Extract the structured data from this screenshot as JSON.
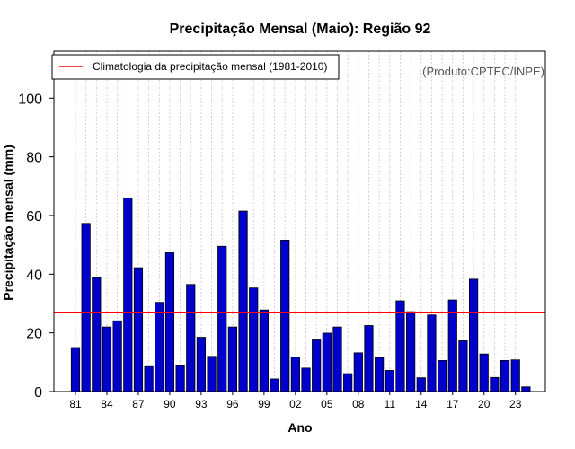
{
  "chart_data": {
    "type": "bar",
    "title": "Precipitação Mensal (Maio): Região 92",
    "xlabel": "Ano",
    "ylabel": "Precipitação mensal (mm)",
    "ylim": [
      0,
      116
    ],
    "yticks": [
      0,
      20,
      40,
      60,
      80,
      100
    ],
    "categories": [
      "81",
      "82",
      "83",
      "84",
      "85",
      "86",
      "87",
      "88",
      "89",
      "90",
      "91",
      "92",
      "93",
      "94",
      "95",
      "96",
      "97",
      "98",
      "99",
      "00",
      "01",
      "02",
      "03",
      "04",
      "05",
      "06",
      "07",
      "08",
      "09",
      "10",
      "11",
      "12",
      "13",
      "14",
      "15",
      "16",
      "17",
      "18",
      "19",
      "20",
      "21",
      "22",
      "23",
      "24"
    ],
    "values": [
      15,
      57.3,
      38.8,
      22,
      24.1,
      66,
      42.2,
      8.5,
      30.4,
      47.3,
      8.8,
      36.5,
      18.5,
      12,
      49.5,
      22,
      61.5,
      35.3,
      27.8,
      4.3,
      51.6,
      11.7,
      8,
      17.6,
      19.9,
      22,
      6.1,
      13.2,
      22.5,
      11.6,
      7.2,
      30.9,
      27.2,
      4.7,
      26.1,
      10.6,
      31.2,
      17.3,
      38.3,
      12.8,
      4.8,
      10.6,
      10.8,
      1.6
    ],
    "xtick_labels": [
      "81",
      "84",
      "87",
      "90",
      "93",
      "96",
      "99",
      "02",
      "05",
      "08",
      "11",
      "14",
      "17",
      "20",
      "23"
    ],
    "climatology": 27,
    "bar_color": "#0000cc",
    "line_color": "#ff0000",
    "grid": true,
    "legend": {
      "label": "Climatologia da precipitação mensal (1981-2010)",
      "position": "top-left"
    },
    "credit": "(Produto:CPTEC/INPE)"
  }
}
